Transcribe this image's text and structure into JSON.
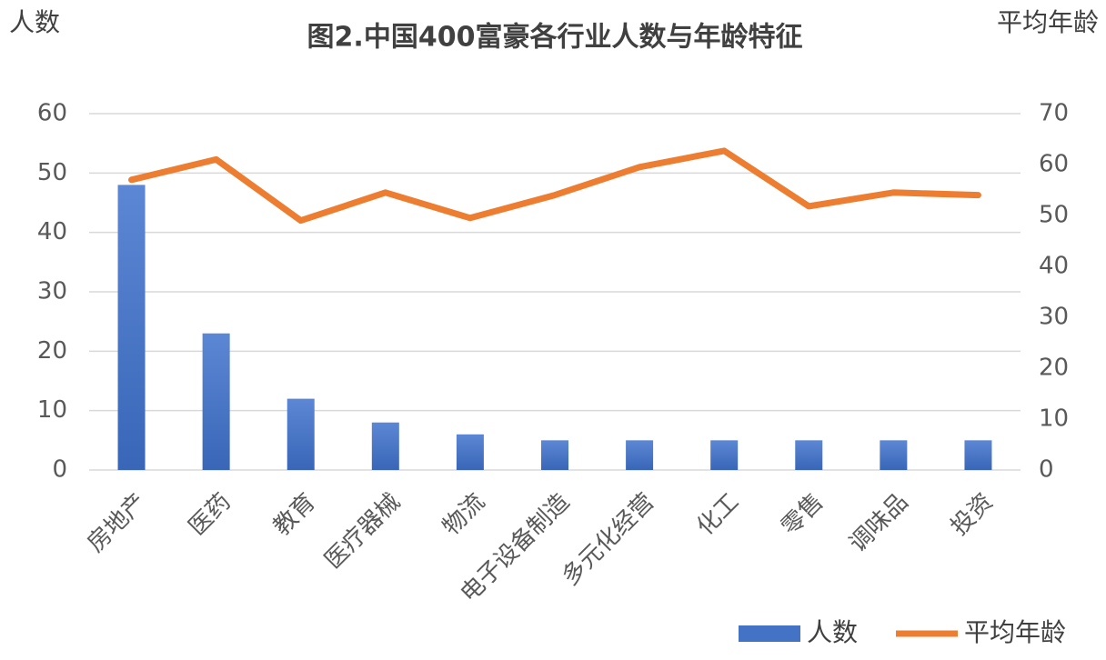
{
  "chart_data": {
    "type": "bar-line",
    "title": "图2.中国400富豪各行业人数与年龄特征",
    "ylabel": "人数",
    "y2label": "平均年龄",
    "categories": [
      "房地产",
      "医药",
      "教育",
      "医疗器械",
      "物流",
      "电子设备制造",
      "多元化经营",
      "化工",
      "零售",
      "调味品",
      "投资"
    ],
    "series": [
      {
        "name": "人数",
        "type": "bar",
        "color": "#4472c4",
        "values": [
          48,
          23,
          12,
          8,
          6,
          5,
          5,
          5,
          5,
          5,
          5
        ]
      },
      {
        "name": "平均年龄",
        "type": "line",
        "axis": "y2",
        "color": "#ed7d31",
        "values": [
          57,
          61,
          49,
          54.5,
          49.5,
          54,
          59.5,
          62.7,
          51.8,
          54.5,
          54
        ]
      }
    ],
    "ylim": [
      0,
      60
    ],
    "yticks": [
      0,
      10,
      20,
      30,
      40,
      50,
      60
    ],
    "y2lim": [
      0,
      70
    ],
    "y2ticks": [
      0,
      10,
      20,
      30,
      40,
      50,
      60,
      70
    ],
    "grid": true,
    "legend": "bottom-right"
  }
}
